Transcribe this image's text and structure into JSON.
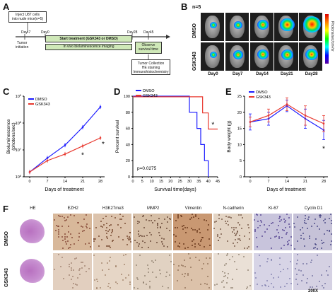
{
  "panel_a": {
    "letter": "A",
    "inject_box": "Inject U87 cells\ninto nude mice(n=5)",
    "days": [
      "Day-7",
      "Day0",
      "Day28",
      "Day45"
    ],
    "treatment_box": "Start treatment (GSK343 or DMSO)",
    "imaging_box": "In vivo bioluminescence imaging",
    "tumor_init": "Tumor\ninitiation",
    "survival_box": "Observe\nsurvival time",
    "collection_box": "Tumor Collection\nHE staining\nImmunohistochemistry"
  },
  "panel_b": {
    "letter": "B",
    "n_label": "n=5",
    "rows": [
      "DMSO",
      "GSK343"
    ],
    "days": [
      "Day0",
      "Day7",
      "Day14",
      "Day21",
      "Day28"
    ],
    "colorbar_label": "Photons/sec/cm²/sr"
  },
  "panel_c": {
    "letter": "C",
    "legend": [
      "DMSO",
      "GSK343"
    ],
    "ylabel": "Bioluminescence\n(photons/sec)",
    "xlabel": "Days of treatment",
    "asterisks": [
      "*",
      "*"
    ]
  },
  "panel_d": {
    "letter": "D",
    "legend": [
      "DMSO",
      "GSK343"
    ],
    "ylabel": "Percent survival",
    "xlabel": "Survival time(days)",
    "pvalue": "p=0.0275",
    "asterisk": "*"
  },
  "panel_e": {
    "letter": "E",
    "legend": [
      "DMSO",
      "GSK343"
    ],
    "ylabel": "Body weight (g)",
    "xlabel": "Days of treatment",
    "asterisk": "*"
  },
  "panel_f": {
    "letter": "F",
    "columns": [
      "HE",
      "EZH2",
      "H3K27me3",
      "MMP2",
      "Vimentin",
      "N-cadherin",
      "Ki-67",
      "Cyclin D1"
    ],
    "rows": [
      "DMSO",
      "GSK343"
    ],
    "magnification": "200X"
  },
  "colors": {
    "dmso": "#1a1aff",
    "gsk": "#e8382e",
    "green_box": "#cfe8b8"
  },
  "chart_data": [
    {
      "type": "line",
      "title": "",
      "xlabel": "Days of treatment",
      "ylabel": "Bioluminescence (photons/sec)",
      "x": [
        0,
        7,
        14,
        21,
        28
      ],
      "xticks": [
        "0",
        "7",
        "14",
        "21",
        "28"
      ],
      "yscale": "log",
      "yticks": [
        "10^6",
        "10^7",
        "10^8",
        "10^9"
      ],
      "ylim": [
        1000000,
        1000000000
      ],
      "series": [
        {
          "name": "DMSO",
          "values": [
            1500000,
            5000000,
            15000000,
            70000000,
            400000000
          ]
        },
        {
          "name": "GSK343",
          "values": [
            1500000,
            4000000,
            7000000,
            14000000,
            28000000
          ]
        }
      ]
    },
    {
      "type": "line",
      "title": "",
      "xlabel": "Survival time(days)",
      "ylabel": "Percent survival",
      "xticks": [
        "0",
        "5",
        "10",
        "15",
        "20",
        "25",
        "30",
        "35",
        "40",
        "45"
      ],
      "yticks": [
        "0",
        "20",
        "40",
        "60",
        "80",
        "100"
      ],
      "xlim": [
        0,
        45
      ],
      "ylim": [
        0,
        100
      ],
      "series": [
        {
          "name": "DMSO",
          "x": [
            0,
            30,
            30,
            34,
            34,
            36,
            36,
            38,
            38,
            40,
            40
          ],
          "values": [
            100,
            100,
            80,
            80,
            60,
            60,
            40,
            40,
            20,
            20,
            0
          ]
        },
        {
          "name": "GSK343",
          "x": [
            0,
            37,
            37,
            40,
            40,
            45
          ],
          "values": [
            100,
            100,
            80,
            80,
            60,
            60
          ]
        }
      ]
    },
    {
      "type": "line",
      "title": "",
      "xlabel": "Days of treatment",
      "ylabel": "Body weight (g)",
      "x": [
        0,
        7,
        14,
        21,
        28
      ],
      "xticks": [
        "0",
        "7",
        "14",
        "21",
        "28"
      ],
      "yticks": [
        "0",
        "5",
        "10",
        "15",
        "20",
        "25"
      ],
      "ylim": [
        0,
        25
      ],
      "series": [
        {
          "name": "DMSO",
          "values": [
            17,
            18,
            22,
            18,
            14.5
          ]
        },
        {
          "name": "GSK343",
          "values": [
            17,
            19,
            22.5,
            19,
            16.5
          ]
        }
      ]
    }
  ]
}
